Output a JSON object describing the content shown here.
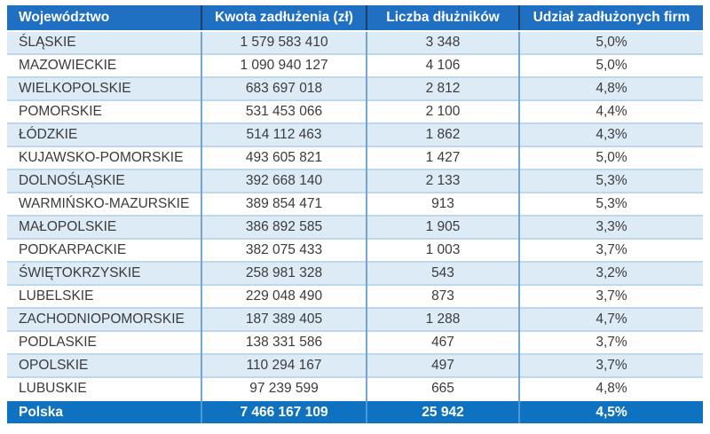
{
  "chart_data": {
    "type": "table",
    "title": "",
    "columns": [
      {
        "label": "Województwo"
      },
      {
        "label": "Kwota zadłużenia (zł)"
      },
      {
        "label": "Liczba dłużników"
      },
      {
        "label": "Udział zadłużonych firm"
      }
    ],
    "rows": [
      [
        "ŚLĄSKIE",
        "1 579 583 410",
        "3 348",
        "5,0%"
      ],
      [
        "MAZOWIECKIE",
        "1 090 940 127",
        "4 106",
        "5,0%"
      ],
      [
        "WIELKOPOLSKIE",
        "683 697 018",
        "2 812",
        "4,8%"
      ],
      [
        "POMORSKIE",
        "531 453 066",
        "2 100",
        "4,4%"
      ],
      [
        "ŁÓDZKIE",
        "514 112 463",
        "1 862",
        "4,3%"
      ],
      [
        "KUJAWSKO-POMORSKIE",
        "493 605 821",
        "1 427",
        "5,0%"
      ],
      [
        "DOLNOŚLĄSKIE",
        "392 668 140",
        "2 133",
        "5,3%"
      ],
      [
        "WARMIŃSKO-MAZURSKIE",
        "389 854 471",
        "913",
        "5,3%"
      ],
      [
        "MAŁOPOLSKIE",
        "386 892 585",
        "1 905",
        "3,3%"
      ],
      [
        "PODKARPACKIE",
        "382 075 433",
        "1 003",
        "3,7%"
      ],
      [
        "ŚWIĘTOKRZYSKIE",
        "258 981 328",
        "543",
        "3,2%"
      ],
      [
        "LUBELSKIE",
        "229 048 490",
        "873",
        "3,7%"
      ],
      [
        "ZACHODNIOPOMORSKIE",
        "187 389 405",
        "1 288",
        "4,7%"
      ],
      [
        "PODLASKIE",
        "138 331 586",
        "467",
        "3,7%"
      ],
      [
        "OPOLSKIE",
        "110 294 167",
        "497",
        "3,7%"
      ],
      [
        "LUBUSKIE",
        "97 239 599",
        "665",
        "4,8%"
      ]
    ],
    "footer": [
      "Polska",
      "7 466 167 109",
      "25 942",
      "4,5%"
    ]
  },
  "colors": {
    "header_bg": "#1F6FC2",
    "footer_bg": "#0F72C1",
    "band_bg": "#DDEBF7",
    "row_divider": "#BDD7EE",
    "col_divider": "#74A4D0",
    "header_divider": "#1A3C66",
    "footer_divider": "#4E97D4",
    "header_text": "#FFFFFF",
    "text": "#3B3B3B"
  }
}
